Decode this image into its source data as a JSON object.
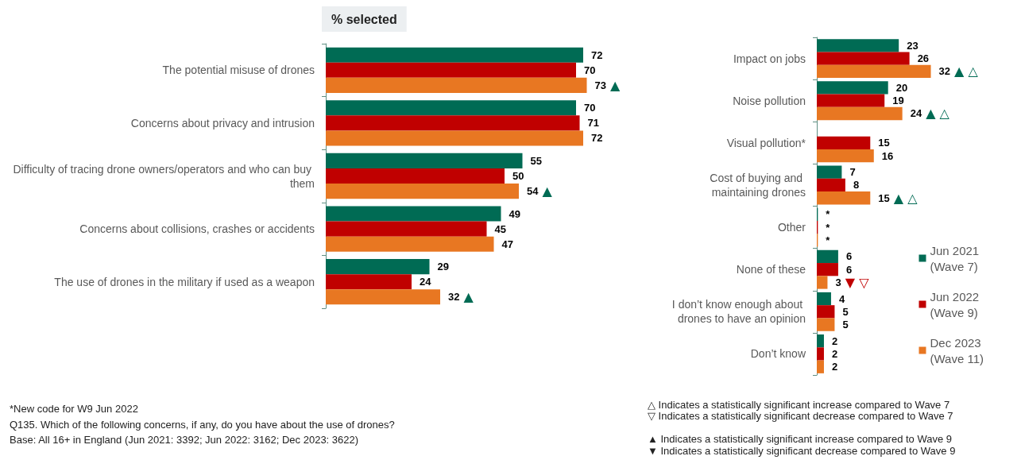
{
  "chart_data": [
    {
      "type": "bar",
      "orientation": "horizontal",
      "title": "% selected",
      "tick_labels": "y",
      "categories": [
        "The potential misuse of drones",
        "Concerns about privacy and intrusion",
        "Difficulty of tracing drone owners/operators and who can buy them",
        "Concerns about collisions, crashes or accidents",
        "The use of drones in the military if used as a weapon"
      ],
      "series": [
        {
          "color": "#006b54",
          "values": [
            72,
            70,
            55,
            49,
            29
          ],
          "value_labels": [
            "72",
            "70",
            "55",
            "49",
            "29"
          ]
        },
        {
          "color": "#c00000",
          "values": [
            70,
            71,
            50,
            45,
            24
          ],
          "value_labels": [
            "70",
            "71",
            "50",
            "45",
            "24"
          ]
        },
        {
          "color": "#e87722",
          "values": [
            73,
            72,
            54,
            47,
            32
          ],
          "value_labels": [
            "73 ▲",
            "72",
            "54 ▲",
            "47",
            "32 ▲"
          ]
        }
      ],
      "annotations": [
        "*New code for W9 Jun 2022",
        "Q135. Which of the following concerns, if any, do you have about the use of drones?",
        "Base: All 16+ in England (Jun 2021: 3392; Jun 2022: 3162; Dec 2023: 3622)"
      ]
    },
    {
      "type": "bar",
      "orientation": "horizontal",
      "tick_labels": "y",
      "legend": "right",
      "categories": [
        "Impact on jobs",
        "Noise pollution",
        "Visual pollution*",
        "Cost of buying and maintaining drones",
        "Other",
        "None of these",
        "I don’t know enough about drones to have an opinion",
        "Don’t know"
      ],
      "series": [
        {
          "name": "Jun 2021\n(Wave 7)",
          "color": "#006b54",
          "values": [
            23,
            20,
            null,
            7,
            0.3,
            6,
            4,
            2
          ],
          "value_labels": [
            "23",
            "20",
            null,
            "7",
            "*",
            "6",
            "4",
            "2"
          ]
        },
        {
          "name": "Jun 2022\n(Wave 9)",
          "color": "#c00000",
          "values": [
            26,
            19,
            15,
            8,
            0.3,
            6,
            5,
            2
          ],
          "value_labels": [
            "26",
            "19",
            "15",
            "8",
            "*",
            "6",
            "5",
            "2"
          ]
        },
        {
          "name": "Dec 2023\n(Wave 11)",
          "color": "#e87722",
          "values": [
            32,
            24,
            16,
            15,
            0.3,
            3,
            5,
            2
          ],
          "value_labels": [
            "32 ▲ △",
            "24 ▲ △",
            "16",
            "15 ▲ △",
            "*",
            "3 ▼ ▽",
            "5",
            "2"
          ]
        }
      ],
      "annotations": [
        "△ Indicates a statistically significant increase compared to Wave 7",
        "▽ Indicates a statistically significant decrease compared to Wave 7",
        "▲ Indicates a statistically significant increase compared to Wave 9",
        "▼ Indicates a statistically significant decrease compared to Wave 9"
      ]
    }
  ]
}
